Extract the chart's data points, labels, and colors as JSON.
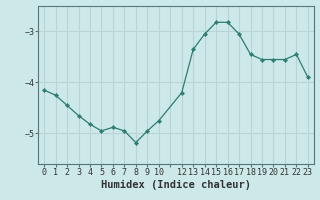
{
  "x": [
    0,
    1,
    2,
    3,
    4,
    5,
    6,
    7,
    8,
    9,
    10,
    12,
    13,
    14,
    15,
    16,
    17,
    18,
    19,
    20,
    21,
    22,
    23
  ],
  "y": [
    -4.15,
    -4.25,
    -4.45,
    -4.65,
    -4.82,
    -4.95,
    -4.88,
    -4.95,
    -5.18,
    -4.95,
    -4.75,
    -4.2,
    -3.35,
    -3.05,
    -2.82,
    -2.82,
    -3.05,
    -3.45,
    -3.55,
    -3.55,
    -3.55,
    -3.45,
    -3.9
  ],
  "line_color": "#2e7d6e",
  "marker": "D",
  "markersize": 2.2,
  "linewidth": 0.9,
  "background_color": "#cce8e8",
  "grid_color": "#b8d4d4",
  "grid_alpha": 1.0,
  "xlabel": "Humidex (Indice chaleur)",
  "xlabel_fontsize": 7.5,
  "ylim": [
    -5.6,
    -2.5
  ],
  "xlim": [
    -0.5,
    23.5
  ],
  "yticks": [
    -5,
    -4,
    -3
  ],
  "xtick_positions": [
    0,
    1,
    2,
    3,
    4,
    5,
    6,
    7,
    8,
    9,
    10,
    11,
    12,
    13,
    14,
    15,
    16,
    17,
    18,
    19,
    20,
    21,
    22,
    23
  ],
  "xtick_labels": [
    "0",
    "1",
    "2",
    "3",
    "4",
    "5",
    "6",
    "7",
    "8",
    "9",
    "10",
    "",
    "12",
    "13",
    "14",
    "15",
    "16",
    "17",
    "18",
    "19",
    "20",
    "21",
    "22",
    "23"
  ],
  "tick_fontsize": 6.0,
  "spine_color": "#557777",
  "axis_color": "#557777"
}
